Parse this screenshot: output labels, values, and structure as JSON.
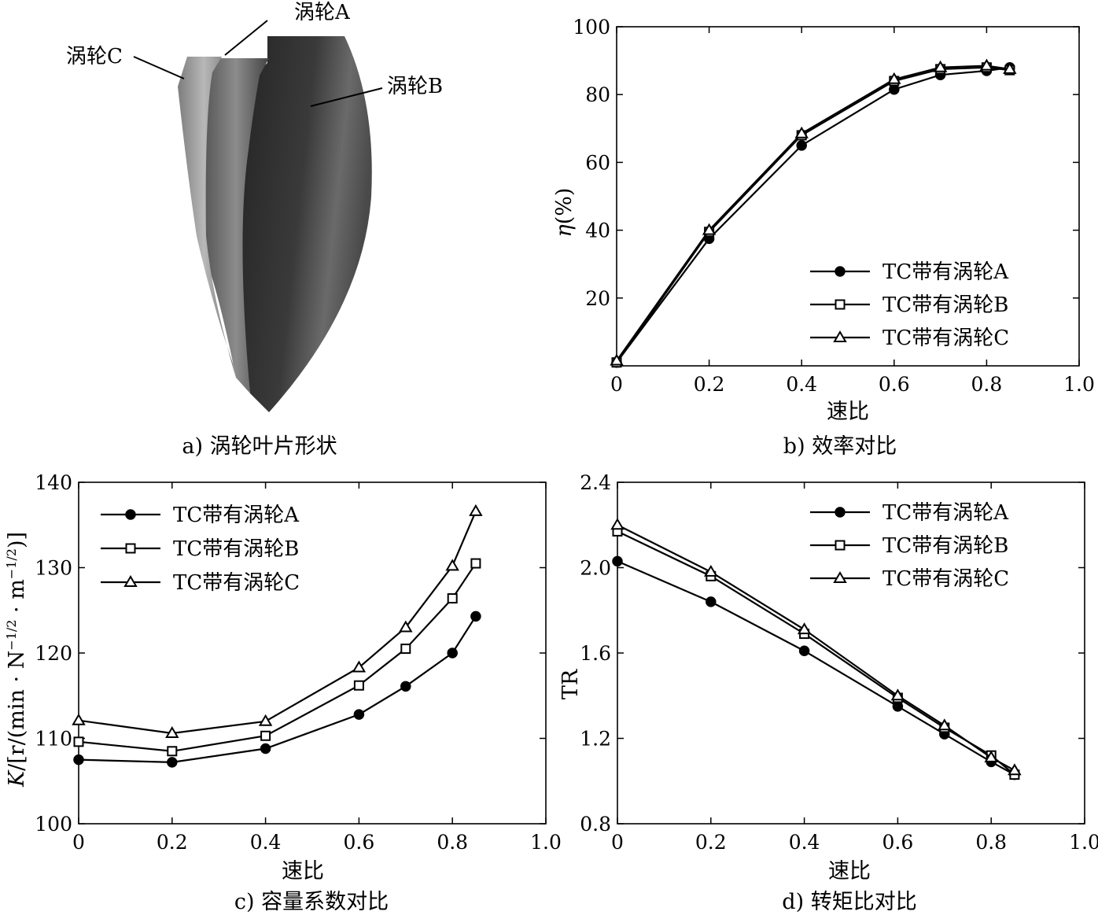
{
  "panels": {
    "a": {
      "caption": "a) 涡轮叶片形状",
      "labels": {
        "turbine_a": "涡轮A",
        "turbine_b": "涡轮B",
        "turbine_c": "涡轮C"
      }
    },
    "b": {
      "caption": "b) 效率对比"
    },
    "c": {
      "caption": "c) 容量系数对比"
    },
    "d": {
      "caption": "d) 转矩比对比"
    }
  },
  "chart_data": [
    {
      "id": "b",
      "type": "line",
      "title": "",
      "xlabel": "速比",
      "ylabel": "η(%)",
      "xlim": [
        0,
        1.0
      ],
      "ylim": [
        0,
        100
      ],
      "xticks": [
        0,
        0.2,
        0.4,
        0.6,
        0.8,
        1.0
      ],
      "xtick_labels": [
        "0",
        "0.2",
        "0.4",
        "0.6",
        "0.8",
        "1.0"
      ],
      "yticks": [
        20,
        40,
        60,
        80,
        100
      ],
      "ytick_labels": [
        "20",
        "40",
        "60",
        "80",
        "100"
      ],
      "legend_position": "bottom-right",
      "series": [
        {
          "name": "TC带有涡轮A",
          "marker": "filled-circle",
          "x": [
            0.0,
            0.2,
            0.4,
            0.6,
            0.7,
            0.8,
            0.85
          ],
          "y": [
            1,
            37.5,
            65,
            81.5,
            85.8,
            87,
            88
          ]
        },
        {
          "name": "TC带有涡轮B",
          "marker": "open-square",
          "x": [
            0.0,
            0.2,
            0.4,
            0.6,
            0.7,
            0.8,
            0.85
          ],
          "y": [
            1,
            39.5,
            68,
            84,
            87.5,
            88,
            87.2
          ]
        },
        {
          "name": "TC带有涡轮C",
          "marker": "open-triangle",
          "x": [
            0.0,
            0.2,
            0.4,
            0.6,
            0.7,
            0.8,
            0.85
          ],
          "y": [
            1.5,
            40,
            68.5,
            84.5,
            88,
            88.5,
            87.5
          ]
        }
      ]
    },
    {
      "id": "c",
      "type": "line",
      "title": "",
      "xlabel": "速比",
      "ylabel": "K/[r/(min·N^−1/2·m^−1/2)]",
      "ylabel_parts": {
        "k": "K",
        "prefix": "/[r/(min · N",
        "exp1": "−1/2",
        "mid": " · m",
        "exp2": "−1/2",
        "suffix": ")]"
      },
      "xlim": [
        0,
        1.0
      ],
      "ylim": [
        100,
        140
      ],
      "xticks": [
        0,
        0.2,
        0.4,
        0.6,
        0.8,
        1.0
      ],
      "xtick_labels": [
        "0",
        "0.2",
        "0.4",
        "0.6",
        "0.8",
        "1.0"
      ],
      "yticks": [
        100,
        110,
        120,
        130,
        140
      ],
      "ytick_labels": [
        "100",
        "110",
        "120",
        "130",
        "140"
      ],
      "legend_position": "top-left",
      "series": [
        {
          "name": "TC带有涡轮A",
          "marker": "filled-circle",
          "x": [
            0.0,
            0.2,
            0.4,
            0.6,
            0.7,
            0.8,
            0.85
          ],
          "y": [
            107.5,
            107.2,
            108.8,
            112.8,
            116.1,
            120,
            124.3
          ]
        },
        {
          "name": "TC带有涡轮B",
          "marker": "open-square",
          "x": [
            0.0,
            0.2,
            0.4,
            0.6,
            0.7,
            0.8,
            0.85
          ],
          "y": [
            109.6,
            108.5,
            110.3,
            116.2,
            120.5,
            126.4,
            130.5
          ]
        },
        {
          "name": "TC带有涡轮C",
          "marker": "open-triangle",
          "x": [
            0.0,
            0.2,
            0.4,
            0.6,
            0.7,
            0.8,
            0.85
          ],
          "y": [
            112.1,
            110.6,
            112,
            118.3,
            123,
            130.2,
            136.6
          ]
        }
      ]
    },
    {
      "id": "d",
      "type": "line",
      "title": "",
      "xlabel": "速比",
      "ylabel": "TR",
      "xlim": [
        0,
        1.0
      ],
      "ylim": [
        0.8,
        2.4
      ],
      "xticks": [
        0,
        0.2,
        0.4,
        0.6,
        0.8,
        1.0
      ],
      "xtick_labels": [
        "0",
        "0.2",
        "0.4",
        "0.6",
        "0.8",
        "1.0"
      ],
      "yticks": [
        0.8,
        1.2,
        1.6,
        2.0,
        2.4
      ],
      "ytick_labels": [
        "0.8",
        "1.2",
        "1.6",
        "2.0",
        "2.4"
      ],
      "legend_position": "top-right",
      "series": [
        {
          "name": "TC带有涡轮A",
          "marker": "filled-circle",
          "x": [
            0.0,
            0.2,
            0.4,
            0.6,
            0.7,
            0.8,
            0.85
          ],
          "y": [
            2.03,
            1.84,
            1.61,
            1.35,
            1.22,
            1.09,
            1.03
          ]
        },
        {
          "name": "TC带有涡轮B",
          "marker": "open-square",
          "x": [
            0.0,
            0.2,
            0.4,
            0.6,
            0.7,
            0.8,
            0.85
          ],
          "y": [
            2.17,
            1.96,
            1.69,
            1.39,
            1.25,
            1.12,
            1.03
          ]
        },
        {
          "name": "TC带有涡轮C",
          "marker": "open-triangle",
          "x": [
            0.0,
            0.2,
            0.4,
            0.6,
            0.7,
            0.8,
            0.85
          ],
          "y": [
            2.2,
            1.98,
            1.71,
            1.4,
            1.26,
            1.11,
            1.05
          ]
        }
      ]
    }
  ]
}
